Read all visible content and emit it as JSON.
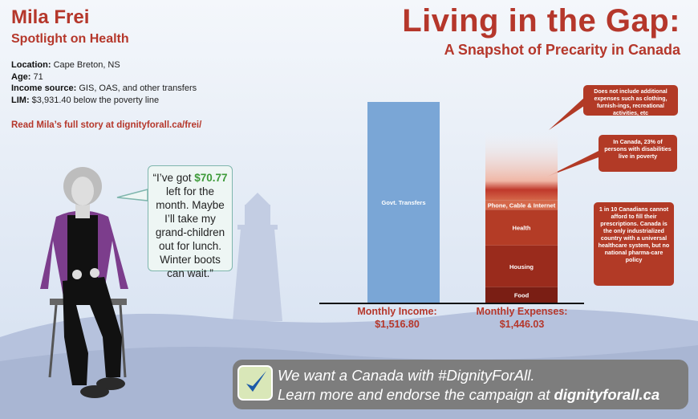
{
  "profile": {
    "name": "Mila Frei",
    "subtitle": "Spotlight on Health",
    "location_label": "Location:",
    "location": "Cape Breton, NS",
    "age_label": "Age:",
    "age": "71",
    "income_label": "Income source:",
    "income": "GIS, OAS, and other transfers",
    "lim_label": "LIM:",
    "lim": "$3,931.40 below the poverty line",
    "read_more": "Read Mila’s full story at dignityforall.ca/frei/"
  },
  "header": {
    "title": "Living in the Gap:",
    "subtitle": "A Snapshot of Precarity in Canada"
  },
  "quote": {
    "before": "“I’ve got ",
    "amount": "$70.77",
    "after": " left for the month. Maybe I’ll take my grand-children out for lunch. Winter boots can wait.”"
  },
  "notes": {
    "expenses": "Does not include additional expenses such as clothing, furnish-ings, recreational activities, etc",
    "disability": "In Canada, 23% of persons with disabilities live in poverty",
    "pharma": "1 in 10 Canadians cannot afford to fill their prescriptions. Canada is the only industrialized country with a universal healthcare system, but no national pharma-care policy"
  },
  "banner": {
    "line1": "We want a Canada with #DignityForAll.",
    "line2_pre": "Learn more and endorse the campaign at ",
    "line2_link": "dignityforall.ca"
  },
  "colors": {
    "accent": "#b5372b",
    "income_bar": "#7aa6d6",
    "food": "#7a1e14",
    "housing": "#9a2b1c",
    "health": "#b43c26",
    "phone": "#d4684a"
  },
  "chart_data": {
    "type": "bar",
    "categories": [
      "Monthly Income:",
      "Monthly Expenses:"
    ],
    "category_values": [
      "$1,516.80",
      "$1,446.03"
    ],
    "values": [
      1516.8,
      1446.03
    ],
    "income_segments": [
      {
        "name": "Govt. Transfers",
        "value": 1516.8
      }
    ],
    "expense_segments": [
      {
        "name": "Food",
        "value": 117
      },
      {
        "name": "Housing",
        "value": 315
      },
      {
        "name": "Health",
        "value": 270
      },
      {
        "name": "Phone, Cable & Internet",
        "value": 70
      },
      {
        "name": "",
        "value": 674
      }
    ],
    "ylim": [
      0,
      1516.8
    ]
  }
}
